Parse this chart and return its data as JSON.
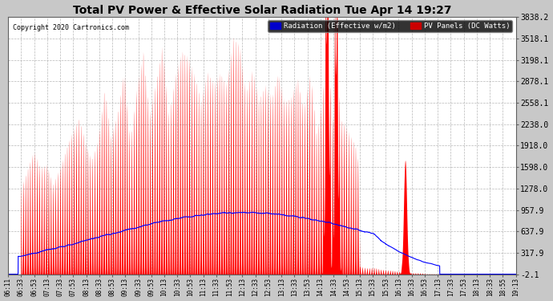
{
  "title": "Total PV Power & Effective Solar Radiation Tue Apr 14 19:27",
  "copyright": "Copyright 2020 Cartronics.com",
  "legend_radiation": "Radiation (Effective w/m2)",
  "legend_pv": "PV Panels (DC Watts)",
  "yticks": [
    3838.2,
    3518.1,
    3198.1,
    2878.1,
    2558.1,
    2238.0,
    1918.0,
    1598.0,
    1278.0,
    957.9,
    637.9,
    317.9,
    -2.1
  ],
  "ymin": -2.1,
  "ymax": 3838.2,
  "bg_color": "#c8c8c8",
  "plot_bg_color": "#ffffff",
  "red_color": "#ff0000",
  "blue_color": "#0000ff",
  "title_color": "#000000",
  "grid_color": "#b0b0b0",
  "xtick_labels": [
    "06:11",
    "06:33",
    "06:53",
    "07:13",
    "07:33",
    "07:53",
    "08:13",
    "08:33",
    "08:53",
    "09:13",
    "09:33",
    "09:53",
    "10:13",
    "10:33",
    "10:53",
    "11:13",
    "11:33",
    "11:53",
    "12:13",
    "12:33",
    "12:53",
    "13:13",
    "13:33",
    "13:53",
    "14:13",
    "14:33",
    "14:53",
    "15:13",
    "15:33",
    "15:53",
    "16:13",
    "16:33",
    "16:53",
    "17:13",
    "17:33",
    "17:53",
    "18:13",
    "18:33",
    "18:55",
    "19:13"
  ]
}
